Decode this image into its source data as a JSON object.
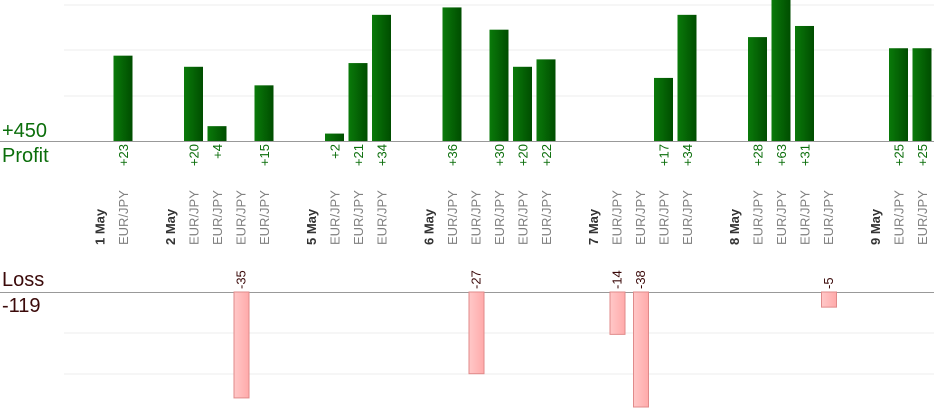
{
  "labels": {
    "profit_total": "+450",
    "profit_word": "Profit",
    "loss_word": "Loss",
    "loss_total": "-119"
  },
  "colors": {
    "profit_bar_dark": "#004d00",
    "profit_bar_light": "#0a7a0a",
    "profit_text": "#0b6e0b",
    "loss_bar_dark": "#ffaaaa",
    "loss_bar_light": "#ffc8c8",
    "loss_bar_stroke": "#e08a8a",
    "loss_text": "#3b0a0a",
    "category_text": "#808080",
    "date_text": "#333333",
    "grid": "#eeeeee",
    "axis": "#999999"
  },
  "chart_data": {
    "type": "bar",
    "title": "",
    "xlabel": "",
    "ylabel": "",
    "profit_axis_range": [
      0,
      38
    ],
    "loss_axis_range": [
      0,
      38
    ],
    "slots": [
      {
        "kind": "date",
        "label": "1 May"
      },
      {
        "kind": "trade",
        "label": "EUR/JPY",
        "value": 23
      },
      {
        "kind": "gap"
      },
      {
        "kind": "date",
        "label": "2 May"
      },
      {
        "kind": "trade",
        "label": "EUR/JPY",
        "value": 20
      },
      {
        "kind": "trade",
        "label": "EUR/JPY",
        "value": 4
      },
      {
        "kind": "trade",
        "label": "EUR/JPY",
        "value": -35
      },
      {
        "kind": "trade",
        "label": "EUR/JPY",
        "value": 15
      },
      {
        "kind": "gap"
      },
      {
        "kind": "date",
        "label": "5 May"
      },
      {
        "kind": "trade",
        "label": "EUR/JPY",
        "value": 2
      },
      {
        "kind": "trade",
        "label": "EUR/JPY",
        "value": 21
      },
      {
        "kind": "trade",
        "label": "EUR/JPY",
        "value": 34
      },
      {
        "kind": "gap"
      },
      {
        "kind": "date",
        "label": "6 May"
      },
      {
        "kind": "trade",
        "label": "EUR/JPY",
        "value": 36
      },
      {
        "kind": "trade",
        "label": "EUR/JPY",
        "value": -27
      },
      {
        "kind": "trade",
        "label": "EUR/JPY",
        "value": 30
      },
      {
        "kind": "trade",
        "label": "EUR/JPY",
        "value": 20
      },
      {
        "kind": "trade",
        "label": "EUR/JPY",
        "value": 22
      },
      {
        "kind": "gap"
      },
      {
        "kind": "date",
        "label": "7 May"
      },
      {
        "kind": "trade",
        "label": "EUR/JPY",
        "value": -14
      },
      {
        "kind": "trade",
        "label": "EUR/JPY",
        "value": -38
      },
      {
        "kind": "trade",
        "label": "EUR/JPY",
        "value": 17
      },
      {
        "kind": "trade",
        "label": "EUR/JPY",
        "value": 34
      },
      {
        "kind": "gap"
      },
      {
        "kind": "date",
        "label": "8 May"
      },
      {
        "kind": "trade",
        "label": "EUR/JPY",
        "value": 28
      },
      {
        "kind": "trade",
        "label": "EUR/JPY",
        "value": 63
      },
      {
        "kind": "trade",
        "label": "EUR/JPY",
        "value": 31
      },
      {
        "kind": "trade",
        "label": "EUR/JPY",
        "value": -5
      },
      {
        "kind": "gap"
      },
      {
        "kind": "date",
        "label": "9 May"
      },
      {
        "kind": "trade",
        "label": "EUR/JPY",
        "value": 25
      },
      {
        "kind": "trade",
        "label": "EUR/JPY",
        "value": 25
      }
    ]
  }
}
